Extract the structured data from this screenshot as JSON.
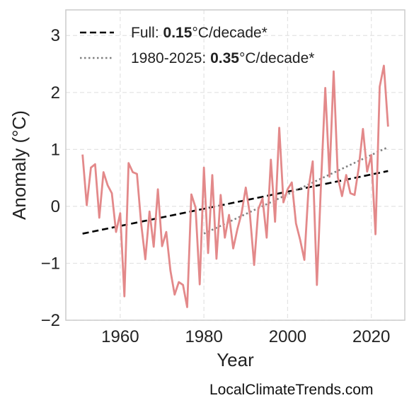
{
  "chart_data": {
    "type": "line",
    "xlabel": "Year",
    "ylabel": "Anomaly (°C)",
    "xlim": [
      1947,
      2028
    ],
    "ylim": [
      -2.0,
      3.45
    ],
    "x_ticks": [
      1960,
      1980,
      2000,
      2020
    ],
    "y_ticks": [
      -2,
      -1,
      0,
      1,
      2,
      3
    ],
    "y_tick_labels": [
      "−2",
      "−1",
      "0",
      "1",
      "2",
      "3"
    ],
    "grid": true,
    "legend_position": "top-left",
    "series": [
      {
        "color": "#e3898a",
        "x": [
          1951,
          1952,
          1953,
          1954,
          1955,
          1956,
          1957,
          1958,
          1959,
          1960,
          1961,
          1962,
          1963,
          1964,
          1965,
          1966,
          1967,
          1968,
          1969,
          1970,
          1971,
          1972,
          1973,
          1974,
          1975,
          1976,
          1977,
          1978,
          1979,
          1980,
          1981,
          1982,
          1983,
          1984,
          1985,
          1986,
          1987,
          1988,
          1989,
          1990,
          1991,
          1992,
          1993,
          1994,
          1995,
          1996,
          1997,
          1998,
          1999,
          2000,
          2001,
          2002,
          2003,
          2004,
          2005,
          2006,
          2007,
          2008,
          2009,
          2010,
          2011,
          2012,
          2013,
          2014,
          2015,
          2016,
          2017,
          2018,
          2019,
          2020,
          2021,
          2022,
          2023,
          2024
        ],
        "y": [
          0.91,
          0.02,
          0.68,
          0.74,
          -0.2,
          0.6,
          0.37,
          0.23,
          -0.45,
          -0.12,
          -1.58,
          0.76,
          0.6,
          0.57,
          -0.3,
          -0.93,
          -0.09,
          -0.71,
          0.3,
          -0.7,
          -0.45,
          -1.13,
          -1.55,
          -1.33,
          -1.38,
          -1.77,
          0.21,
          -0.02,
          -1.37,
          0.68,
          -0.82,
          0.55,
          -0.92,
          0.2,
          -0.55,
          -0.15,
          -0.74,
          -0.4,
          -0.12,
          0.33,
          -0.15,
          -1.03,
          -0.05,
          0.14,
          -0.55,
          0.82,
          -0.27,
          1.38,
          0.07,
          0.3,
          0.42,
          -0.3,
          -0.59,
          -0.94,
          0.32,
          0.79,
          -1.38,
          0.43,
          2.08,
          0.52,
          2.37,
          0.51,
          0.18,
          0.55,
          0.23,
          0.2,
          0.68,
          1.36,
          0.61,
          0.9,
          -0.49,
          2.1,
          2.47,
          1.4
        ]
      }
    ],
    "trendlines": [
      {
        "name": "Full: 0.15°C/decade*",
        "label_prefix": "Full: ",
        "label_value": "0.15",
        "label_suffix": "°C/decade*",
        "style": "dashed",
        "color": "#000000",
        "x": [
          1951,
          2024
        ],
        "y": [
          -0.48,
          0.62
        ]
      },
      {
        "name": "1980-2025: 0.35°C/decade*",
        "label_prefix": "1980-2025: ",
        "label_value": "0.35",
        "label_suffix": "°C/decade*",
        "style": "dotted",
        "color": "#808080",
        "x": [
          1980,
          2024
        ],
        "y": [
          -0.48,
          1.04
        ]
      }
    ]
  },
  "credit": "LocalClimateTrends.com"
}
